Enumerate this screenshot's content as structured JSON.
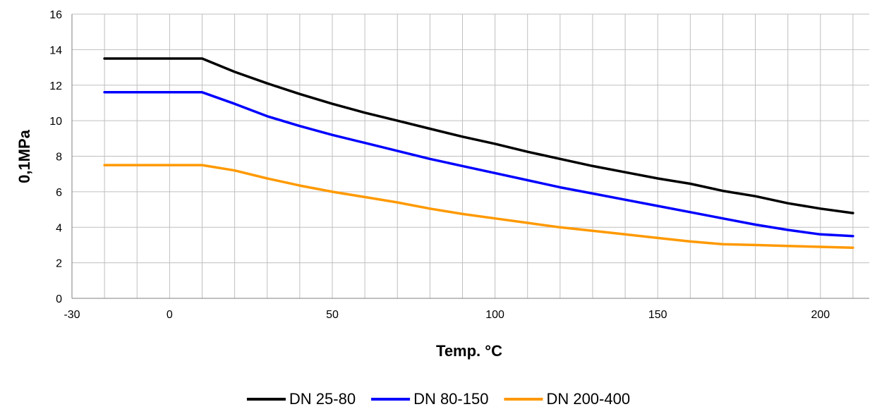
{
  "chart_data": {
    "type": "line",
    "xlabel": "Temp. °C",
    "ylabel": "0,1MPa",
    "xlim": [
      -30,
      215
    ],
    "ylim": [
      0,
      16
    ],
    "x_ticks": [
      -30,
      0,
      50,
      100,
      150,
      200
    ],
    "y_ticks": [
      0,
      2,
      4,
      6,
      8,
      10,
      12,
      14,
      16
    ],
    "x_grid_step": 10,
    "grid": true,
    "legend_position": "bottom",
    "x": [
      -20,
      -10,
      0,
      10,
      20,
      30,
      40,
      50,
      60,
      70,
      80,
      90,
      100,
      110,
      120,
      130,
      140,
      150,
      160,
      170,
      180,
      190,
      200,
      210
    ],
    "series": [
      {
        "name": "DN 25-80",
        "color": "#000000",
        "values": [
          13.5,
          13.5,
          13.5,
          13.5,
          12.75,
          12.1,
          11.5,
          10.95,
          10.45,
          10.0,
          9.55,
          9.1,
          8.7,
          8.25,
          7.85,
          7.45,
          7.1,
          6.75,
          6.45,
          6.05,
          5.75,
          5.35,
          5.05,
          4.8
        ]
      },
      {
        "name": "DN 80-150",
        "color": "#0000FF",
        "values": [
          11.6,
          11.6,
          11.6,
          11.6,
          10.95,
          10.25,
          9.7,
          9.2,
          8.75,
          8.3,
          7.85,
          7.45,
          7.05,
          6.65,
          6.25,
          5.9,
          5.55,
          5.2,
          4.85,
          4.5,
          4.15,
          3.85,
          3.6,
          3.5
        ]
      },
      {
        "name": "DN 200-400",
        "color": "#FF9900",
        "values": [
          7.5,
          7.5,
          7.5,
          7.5,
          7.2,
          6.75,
          6.35,
          6.0,
          5.7,
          5.4,
          5.05,
          4.75,
          4.5,
          4.25,
          4.0,
          3.8,
          3.6,
          3.4,
          3.2,
          3.05,
          3.0,
          2.95,
          2.9,
          2.85
        ]
      }
    ]
  }
}
